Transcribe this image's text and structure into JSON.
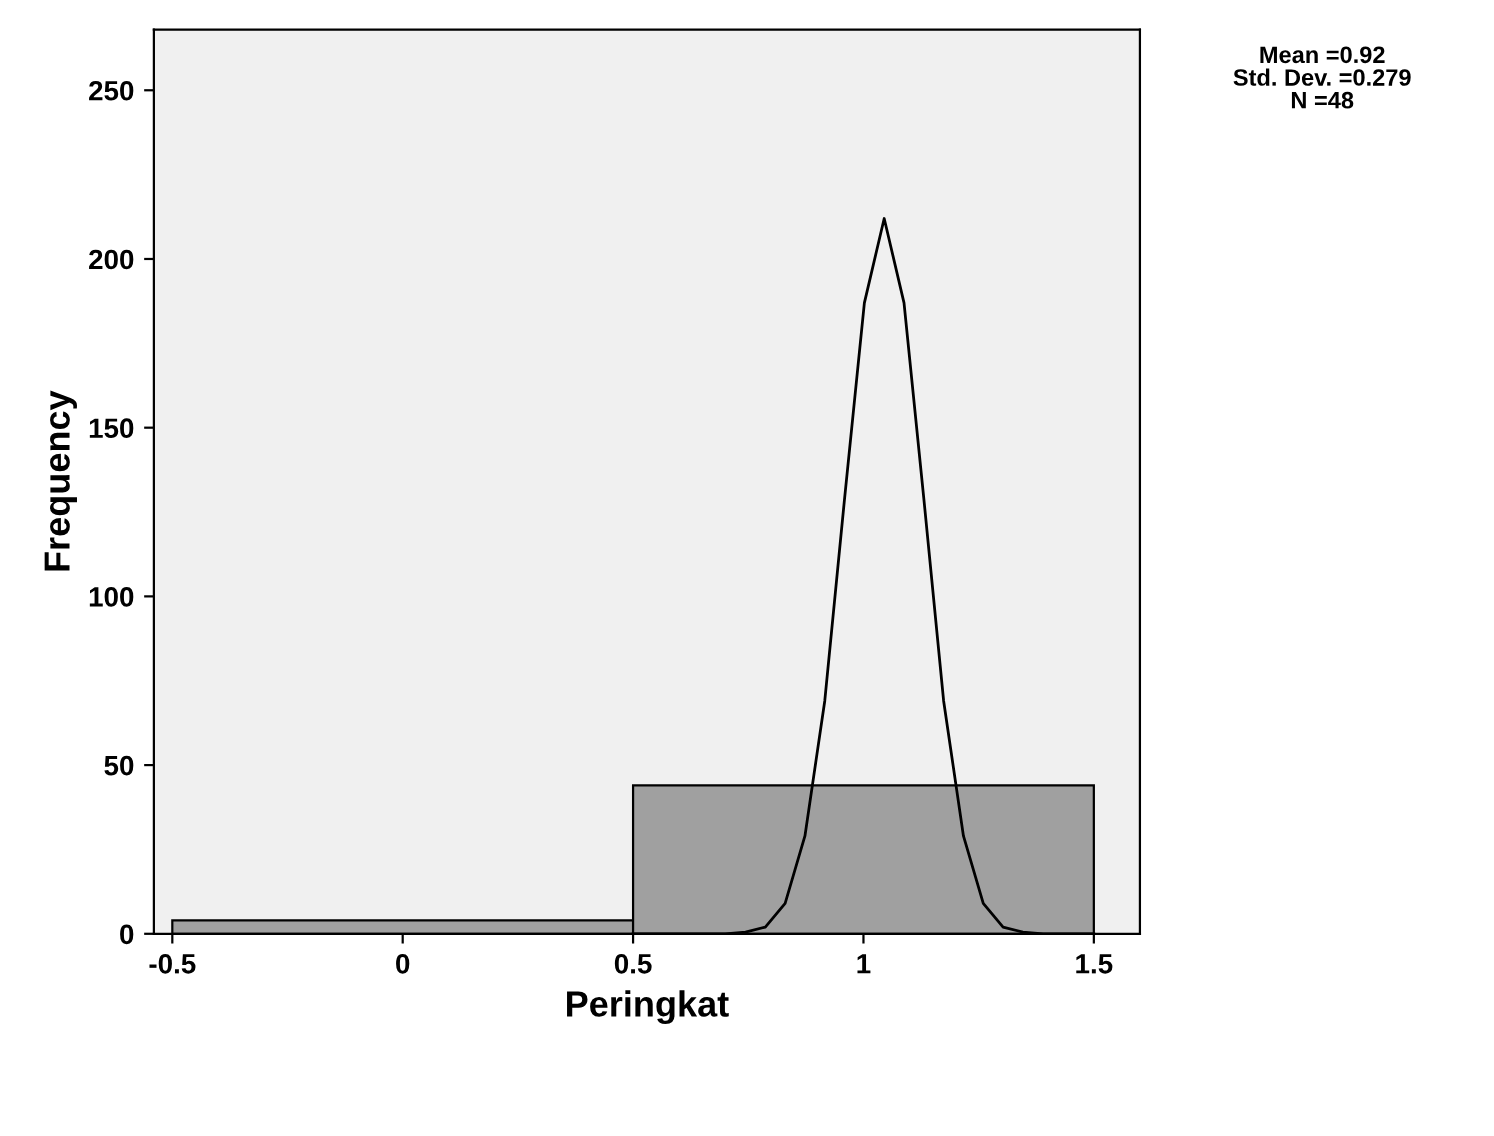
{
  "chart_data": {
    "type": "histogram",
    "xlabel": "Peringkat",
    "ylabel": "Frequency",
    "bins": [
      -0.5,
      0.5,
      1.5
    ],
    "values": [
      4,
      44
    ],
    "color": "#a0a0a0",
    "series": [
      {
        "type": "line",
        "color": "#000000",
        "x": [
          0.5,
          0.7,
          0.744,
          0.787,
          0.83,
          0.873,
          0.916,
          0.959,
          1.002,
          1.045,
          1.088,
          1.131,
          1.174,
          1.217,
          1.26,
          1.303,
          1.346,
          1.39,
          1.5
        ],
        "values": [
          0,
          0,
          0.5,
          2,
          9,
          29,
          69,
          129,
          187,
          212,
          187,
          129,
          69,
          29,
          9,
          2,
          0.5,
          0,
          0
        ]
      }
    ],
    "xlim": [
      -0.54,
      1.6
    ],
    "ylim": [
      0,
      268
    ],
    "xticks": [
      -0.5,
      0,
      0.5,
      1,
      1.5
    ],
    "yticks": [
      0,
      50,
      100,
      150,
      200,
      250
    ],
    "grid": false,
    "annotations": [
      "Mean =0.92",
      "Std. Dev. =0.279",
      "N =48"
    ]
  }
}
